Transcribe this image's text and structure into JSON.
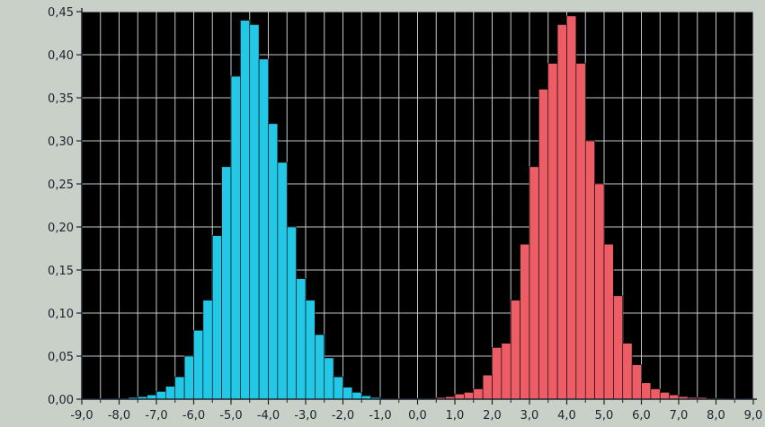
{
  "chart_data": {
    "type": "bar",
    "title": "",
    "xlabel": "",
    "ylabel": "",
    "xlim": [
      -9.0,
      9.0
    ],
    "ylim": [
      0.0,
      0.45
    ],
    "grid": true,
    "x_ticks": [
      "-9,0",
      "-8,0",
      "-7,0",
      "-6,0",
      "-5,0",
      "-4,0",
      "-3,0",
      "-2,0",
      "-1,0",
      "0,0",
      "1,0",
      "2,0",
      "3,0",
      "4,0",
      "5,0",
      "6,0",
      "7,0",
      "8,0",
      "9,0"
    ],
    "y_ticks": [
      "0,00",
      "0,05",
      "0,10",
      "0,15",
      "0,20",
      "0,25",
      "0,30",
      "0,35",
      "0,40",
      "0,45"
    ],
    "bin_width": 0.25,
    "colors": {
      "background": "#000000",
      "grid": "#bfc8c8",
      "axis": "#1b2430",
      "frame": "#c9d0c7"
    },
    "series": [
      {
        "color": "#22c8e6",
        "x": [
          -8.125,
          -7.875,
          -7.625,
          -7.375,
          -7.125,
          -6.875,
          -6.625,
          -6.375,
          -6.125,
          -5.875,
          -5.625,
          -5.375,
          -5.125,
          -4.875,
          -4.625,
          -4.375,
          -4.125,
          -3.875,
          -3.625,
          -3.375,
          -3.125,
          -2.875,
          -2.625,
          -2.375,
          -2.125,
          -1.875,
          -1.625,
          -1.375,
          -1.125
        ],
        "values": [
          0.001,
          0.001,
          0.002,
          0.003,
          0.005,
          0.009,
          0.015,
          0.026,
          0.05,
          0.08,
          0.115,
          0.19,
          0.27,
          0.375,
          0.44,
          0.435,
          0.395,
          0.32,
          0.275,
          0.2,
          0.14,
          0.115,
          0.075,
          0.048,
          0.026,
          0.014,
          0.008,
          0.004,
          0.002
        ]
      },
      {
        "color": "#ec5d66",
        "x": [
          0.125,
          0.375,
          0.625,
          0.875,
          1.125,
          1.375,
          1.625,
          1.875,
          2.125,
          2.375,
          2.625,
          2.875,
          3.125,
          3.375,
          3.625,
          3.875,
          4.125,
          4.375,
          4.625,
          4.875,
          5.125,
          5.375,
          5.625,
          5.875,
          6.125,
          6.375,
          6.625,
          6.875,
          7.125,
          7.375,
          7.625,
          7.875,
          8.125
        ],
        "values": [
          0.001,
          0.001,
          0.002,
          0.003,
          0.006,
          0.008,
          0.012,
          0.028,
          0.06,
          0.065,
          0.115,
          0.18,
          0.27,
          0.36,
          0.39,
          0.435,
          0.445,
          0.39,
          0.3,
          0.25,
          0.18,
          0.12,
          0.065,
          0.04,
          0.019,
          0.012,
          0.008,
          0.005,
          0.003,
          0.002,
          0.002,
          0.001,
          0.001
        ]
      }
    ]
  }
}
